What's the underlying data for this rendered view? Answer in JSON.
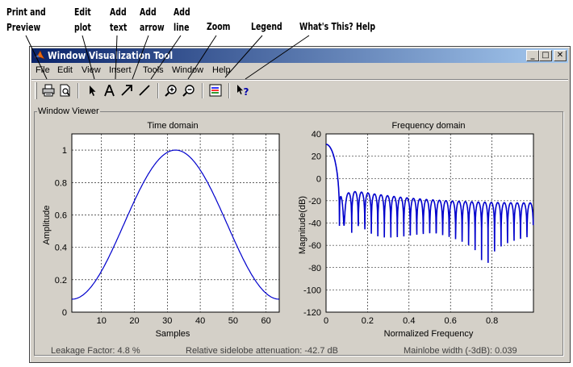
{
  "callouts": {
    "print_preview": "Print and\nPreview",
    "edit_plot": "Edit\nplot",
    "add_text": "Add\ntext",
    "add_arrow": "Add\narrow",
    "add_line": "Add\nline",
    "zoom": "Zoom",
    "legend": "Legend",
    "whats_this": "What's This? Help"
  },
  "window": {
    "title": "Window Visualization Tool",
    "controls": {
      "minimize": "_",
      "maximize": "□",
      "close": "✕"
    }
  },
  "menu": [
    "File",
    "Edit",
    "View",
    "Insert",
    "Tools",
    "Window",
    "Help"
  ],
  "toolbar": {
    "icons": [
      "print-icon",
      "print-preview-icon",
      "edit-plot-arrow-icon",
      "add-text-icon",
      "add-arrow-icon",
      "add-line-icon",
      "zoom-in-icon",
      "zoom-out-icon",
      "legend-icon",
      "whats-this-help-icon"
    ]
  },
  "viewer": {
    "group_label": "Window Viewer",
    "time_plot": {
      "title": "Time domain",
      "xlabel": "Samples",
      "ylabel": "Amplitude",
      "xticks": [
        "10",
        "20",
        "30",
        "40",
        "50",
        "60"
      ],
      "yticks": [
        "0",
        "0.2",
        "0.4",
        "0.6",
        "0.8",
        "1"
      ]
    },
    "freq_plot": {
      "title": "Frequency domain",
      "xlabel": "Normalized Frequency",
      "ylabel": "Magnitude(dB)",
      "xticks": [
        "0",
        "0.2",
        "0.4",
        "0.6",
        "0.8"
      ],
      "yticks": [
        "40",
        "20",
        "0",
        "-20",
        "-40",
        "-60",
        "-80",
        "-100",
        "-120"
      ]
    },
    "status": {
      "leakage": "Leakage Factor: 4.8 %",
      "sidelobe": "Relative sidelobe attenuation: -42.7 dB",
      "mainlobe": "Mainlobe width (-3dB): 0.039"
    }
  },
  "colors": {
    "trace": "#0000cc",
    "titlebar_start": "#0a246a",
    "titlebar_end": "#a6caf0",
    "face": "#d4d0c8"
  }
}
